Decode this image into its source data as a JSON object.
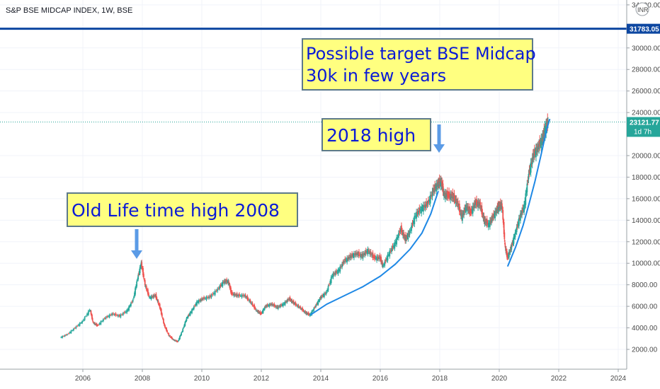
{
  "header": {
    "title": "S&P BSE MIDCAP INDEX, 1W, BSE"
  },
  "currency_badge": "INR",
  "chart_data": {
    "type": "line",
    "title": "S&P BSE MIDCAP INDEX, 1W, BSE",
    "xlabel": "",
    "ylabel": "",
    "xlim": [
      2004.6,
      2024.2
    ],
    "ylim": [
      1000,
      35000
    ],
    "grid": true,
    "x_ticks": [
      "2006",
      "2008",
      "2010",
      "2012",
      "2014",
      "2016",
      "2018",
      "2020",
      "2022",
      "2024"
    ],
    "y_ticks": [
      "2000.00",
      "4000.00",
      "6000.00",
      "8000.00",
      "10000.00",
      "12000.00",
      "14000.00",
      "16000.00",
      "18000.00",
      "20000.00",
      "24000.00",
      "26000.00",
      "28000.00",
      "30000.00",
      "34000.00"
    ],
    "series": [
      {
        "values_xy": [
          [
            2005.25,
            3100
          ],
          [
            2005.5,
            3400
          ],
          [
            2005.75,
            4000
          ],
          [
            2006.0,
            4600
          ],
          [
            2006.25,
            5700
          ],
          [
            2006.35,
            4500
          ],
          [
            2006.5,
            4200
          ],
          [
            2006.75,
            4900
          ],
          [
            2007.0,
            5300
          ],
          [
            2007.25,
            5100
          ],
          [
            2007.5,
            5600
          ],
          [
            2007.7,
            6600
          ],
          [
            2007.85,
            8600
          ],
          [
            2007.97,
            10000
          ],
          [
            2008.1,
            8000
          ],
          [
            2008.25,
            6800
          ],
          [
            2008.45,
            7000
          ],
          [
            2008.6,
            5900
          ],
          [
            2008.75,
            4200
          ],
          [
            2008.9,
            3300
          ],
          [
            2009.05,
            2900
          ],
          [
            2009.2,
            2700
          ],
          [
            2009.35,
            3700
          ],
          [
            2009.5,
            4900
          ],
          [
            2009.65,
            5500
          ],
          [
            2009.85,
            6400
          ],
          [
            2010.05,
            6700
          ],
          [
            2010.3,
            6900
          ],
          [
            2010.55,
            7600
          ],
          [
            2010.75,
            8300
          ],
          [
            2010.9,
            8300
          ],
          [
            2011.0,
            7200
          ],
          [
            2011.2,
            7000
          ],
          [
            2011.45,
            7000
          ],
          [
            2011.65,
            6400
          ],
          [
            2011.85,
            5600
          ],
          [
            2012.0,
            5300
          ],
          [
            2012.15,
            6000
          ],
          [
            2012.35,
            6200
          ],
          [
            2012.55,
            5900
          ],
          [
            2012.75,
            6200
          ],
          [
            2012.95,
            6700
          ],
          [
            2013.1,
            6300
          ],
          [
            2013.3,
            5900
          ],
          [
            2013.5,
            5400
          ],
          [
            2013.65,
            5200
          ],
          [
            2013.85,
            6100
          ],
          [
            2014.0,
            6800
          ],
          [
            2014.2,
            7300
          ],
          [
            2014.4,
            8900
          ],
          [
            2014.6,
            9300
          ],
          [
            2014.8,
            10200
          ],
          [
            2015.0,
            10600
          ],
          [
            2015.2,
            10900
          ],
          [
            2015.4,
            10700
          ],
          [
            2015.6,
            11200
          ],
          [
            2015.8,
            10500
          ],
          [
            2016.0,
            10500
          ],
          [
            2016.1,
            9700
          ],
          [
            2016.3,
            10900
          ],
          [
            2016.5,
            11800
          ],
          [
            2016.7,
            13200
          ],
          [
            2016.85,
            12200
          ],
          [
            2017.0,
            12900
          ],
          [
            2017.2,
            14500
          ],
          [
            2017.4,
            15100
          ],
          [
            2017.6,
            15500
          ],
          [
            2017.8,
            16800
          ],
          [
            2017.95,
            17400
          ],
          [
            2018.05,
            17600
          ],
          [
            2018.15,
            16400
          ],
          [
            2018.3,
            16300
          ],
          [
            2018.45,
            16200
          ],
          [
            2018.6,
            15600
          ],
          [
            2018.75,
            14300
          ],
          [
            2018.9,
            15300
          ],
          [
            2019.05,
            14700
          ],
          [
            2019.2,
            15600
          ],
          [
            2019.35,
            15500
          ],
          [
            2019.5,
            14000
          ],
          [
            2019.65,
            13600
          ],
          [
            2019.8,
            14300
          ],
          [
            2019.95,
            15100
          ],
          [
            2020.0,
            15300
          ],
          [
            2020.1,
            15400
          ],
          [
            2020.2,
            11600
          ],
          [
            2020.28,
            10500
          ],
          [
            2020.4,
            11400
          ],
          [
            2020.55,
            12800
          ],
          [
            2020.7,
            14300
          ],
          [
            2020.85,
            15300
          ],
          [
            2021.0,
            18300
          ],
          [
            2021.15,
            20000
          ],
          [
            2021.3,
            20700
          ],
          [
            2021.45,
            21500
          ],
          [
            2021.55,
            22500
          ],
          [
            2021.65,
            23100
          ]
        ]
      },
      {
        "values_xy": [
          [
            2013.65,
            5200
          ],
          [
            2014.2,
            6200
          ],
          [
            2014.8,
            7000
          ],
          [
            2015.4,
            7800
          ],
          [
            2016.0,
            8800
          ],
          [
            2016.5,
            9900
          ],
          [
            2017.0,
            11300
          ],
          [
            2017.4,
            12800
          ],
          [
            2017.7,
            14600
          ],
          [
            2017.95,
            16700
          ]
        ]
      },
      {
        "values_xy": [
          [
            2020.28,
            9700
          ],
          [
            2020.55,
            11500
          ],
          [
            2020.8,
            13500
          ],
          [
            2021.0,
            15500
          ],
          [
            2021.2,
            17600
          ],
          [
            2021.4,
            20000
          ],
          [
            2021.6,
            22500
          ],
          [
            2021.7,
            23400
          ]
        ]
      }
    ],
    "horizontal_lines": [
      {
        "value": 31783.05,
        "label": "31783.05",
        "color": "#0d47a1"
      },
      {
        "value": 23121.77,
        "label": "23121.77",
        "sublabel": "1d 7h",
        "color": "#26a69a"
      }
    ],
    "annotations": [
      {
        "text_lines": [
          "Old Life time high 2008"
        ],
        "x": 2007.97,
        "y": 10000,
        "arrow": true
      },
      {
        "text_lines": [
          "2018 high"
        ],
        "x": 2017.95,
        "y": 17600,
        "arrow": true
      },
      {
        "text_lines": [
          "Possible target BSE Midcap",
          "30k in few years"
        ],
        "x": null,
        "y": null,
        "arrow": false
      }
    ]
  },
  "colors": {
    "annotation_bg": "#ffff80",
    "annotation_border": "#5d7a8a",
    "annotation_text": "#0a1ad6",
    "arrow": "#5b9be6",
    "trendline": "#1e88e5",
    "candle_up": "#26a69a",
    "candle_down": "#ef5350",
    "current_price": "#26a69a",
    "target_line": "#0d47a1"
  }
}
